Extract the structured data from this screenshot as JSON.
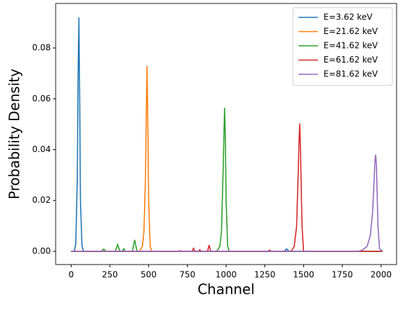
{
  "chart_data": {
    "type": "line",
    "xlabel": "Channel",
    "ylabel": "Probability Density",
    "xlim": [
      -100,
      2100
    ],
    "ylim": [
      -0.0052,
      0.0975
    ],
    "xticks": [
      0,
      250,
      500,
      750,
      1000,
      1250,
      1500,
      1750,
      2000
    ],
    "yticks": [
      {
        "value": 0,
        "label": "0.00"
      },
      {
        "value": 0.02,
        "label": "0.02"
      },
      {
        "value": 0.04,
        "label": "0.04"
      },
      {
        "value": 0.06,
        "label": "0.06"
      },
      {
        "value": 0.08,
        "label": "0.08"
      }
    ],
    "legend": "upper right",
    "grid": false,
    "series": [
      {
        "name": "E=3.62 keV",
        "color": "#1f77b4",
        "x": [
          0,
          20,
          30,
          40,
          45,
          50,
          55,
          60,
          70,
          80,
          1370,
          1380,
          1390,
          1400,
          1410,
          2010
        ],
        "values": [
          0,
          0,
          0.003,
          0.03,
          0.07,
          0.092,
          0.06,
          0.02,
          0.002,
          0,
          0,
          0.0003,
          0.001,
          0.0003,
          0,
          0
        ]
      },
      {
        "name": "E=21.62 keV",
        "color": "#ff7f0e",
        "x": [
          0,
          440,
          460,
          470,
          480,
          485,
          490,
          495,
          500,
          510,
          520,
          2010
        ],
        "values": [
          0,
          0,
          0.002,
          0.008,
          0.03,
          0.055,
          0.073,
          0.05,
          0.02,
          0.002,
          0,
          0
        ]
      },
      {
        "name": "E=41.62 keV",
        "color": "#2ca02c",
        "x": [
          0,
          195,
          210,
          225,
          285,
          300,
          315,
          330,
          340,
          350,
          395,
          410,
          425,
          940,
          960,
          970,
          980,
          990,
          995,
          1000,
          1010,
          1020,
          2010
        ],
        "values": [
          0,
          0,
          0.0009,
          0,
          0,
          0.0027,
          0,
          0,
          0.001,
          0,
          0,
          0.0045,
          0,
          0,
          0.002,
          0.008,
          0.03,
          0.0565,
          0.045,
          0.02,
          0.002,
          0,
          0
        ]
      },
      {
        "name": "E=61.62 keV",
        "color": "#d62728",
        "x": [
          0,
          690,
          700,
          710,
          780,
          790,
          800,
          820,
          830,
          840,
          880,
          890,
          900,
          1270,
          1280,
          1290,
          1420,
          1440,
          1455,
          1465,
          1470,
          1475,
          1480,
          1490,
          1500,
          2010
        ],
        "values": [
          0,
          0,
          0.0003,
          0,
          0,
          0.0012,
          0,
          0,
          0.0006,
          0,
          0,
          0.0025,
          0,
          0,
          0.0005,
          0,
          0,
          0.002,
          0.01,
          0.03,
          0.042,
          0.0503,
          0.04,
          0.01,
          0,
          0
        ]
      },
      {
        "name": "E=81.62 keV",
        "color": "#9467bd",
        "x": [
          0,
          1850,
          1880,
          1910,
          1930,
          1945,
          1955,
          1960,
          1965,
          1970,
          1980,
          1990,
          2010
        ],
        "values": [
          0,
          0,
          0.0005,
          0.002,
          0.006,
          0.015,
          0.028,
          0.035,
          0.038,
          0.034,
          0.01,
          0.001,
          0
        ]
      }
    ]
  }
}
